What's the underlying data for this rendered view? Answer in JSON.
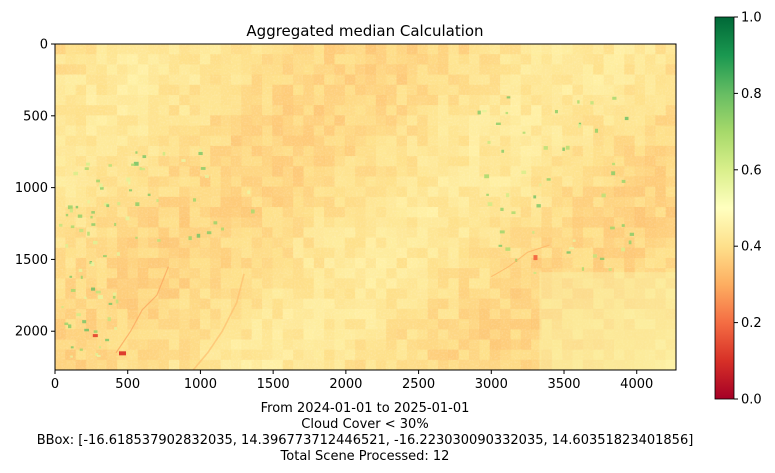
{
  "chart_data": {
    "type": "heatmap",
    "title": "Aggregated median Calculation",
    "image_extent": {
      "x": [
        0,
        4270
      ],
      "y": [
        2270,
        0
      ]
    },
    "x_ticks": [
      0,
      500,
      1000,
      1500,
      2000,
      2500,
      3000,
      3500,
      4000
    ],
    "y_ticks": [
      0,
      500,
      1000,
      1500,
      2000
    ],
    "x_tick_labels": [
      "0",
      "500",
      "1000",
      "1500",
      "2000",
      "2500",
      "3000",
      "3500",
      "4000"
    ],
    "y_tick_labels": [
      "0",
      "500",
      "1000",
      "1500",
      "2000"
    ],
    "colormap": "RdYlGn",
    "colormap_stops": [
      "#a50026",
      "#d73027",
      "#f46d43",
      "#fdae61",
      "#fee08b",
      "#ffffbf",
      "#d9ef8b",
      "#a6d96a",
      "#66bd63",
      "#1a9850",
      "#006837"
    ],
    "colorbar": {
      "range": [
        0.0,
        1.0
      ],
      "ticks": [
        0.0,
        0.2,
        0.4,
        0.6,
        0.8,
        1.0
      ],
      "tick_labels": [
        "0.0",
        "0.2",
        "0.4",
        "0.6",
        "0.8",
        "1.0"
      ]
    },
    "typical_value": 0.4,
    "grid": false,
    "caption": [
      "From 2024-01-01 to 2025-01-01",
      "Cloud Cover < 30%",
      "BBox: [-16.618537902832035, 14.396773712446521, -16.223030090332035, 14.60351823401856]",
      "Total Scene Processed: 12"
    ]
  }
}
